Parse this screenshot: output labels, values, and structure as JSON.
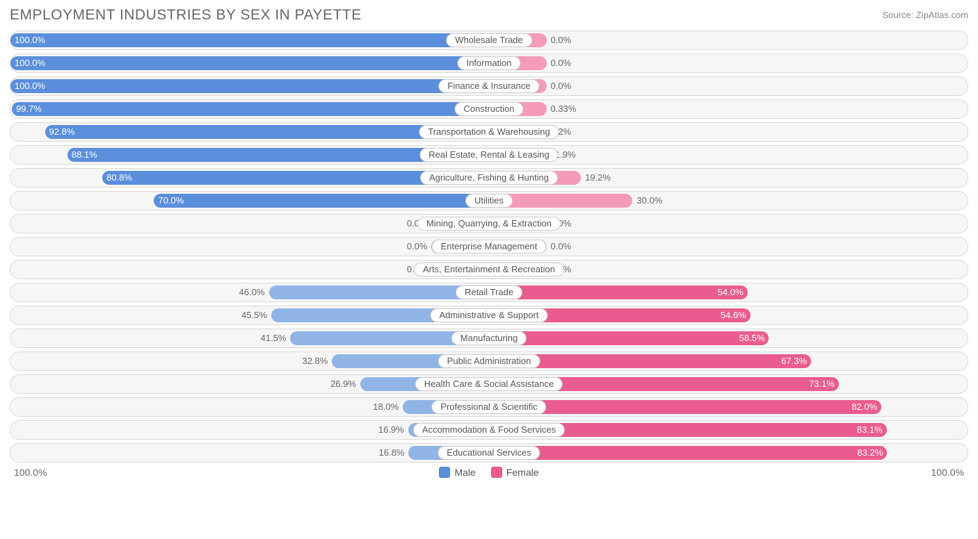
{
  "title": "EMPLOYMENT INDUSTRIES BY SEX IN PAYETTE",
  "source": "Source: ZipAtlas.com",
  "colors": {
    "male_dark": "#5b8edb",
    "male_light": "#90b4e6",
    "female_dark": "#ea5c8f",
    "female_light": "#f59bba",
    "row_bg": "#f6f6f6",
    "row_border": "#d9d9d9",
    "text": "#666666"
  },
  "axis": {
    "left_label": "100.0%",
    "right_label": "100.0%"
  },
  "legend": {
    "male": "Male",
    "female": "Female"
  },
  "chart": {
    "type": "diverging-bar",
    "min_bar_pct": 12,
    "rows": [
      {
        "category": "Wholesale Trade",
        "male_label": "100.0%",
        "male_pct": 100.0,
        "female_label": "0.0%",
        "female_pct": 0.0
      },
      {
        "category": "Information",
        "male_label": "100.0%",
        "male_pct": 100.0,
        "female_label": "0.0%",
        "female_pct": 0.0
      },
      {
        "category": "Finance & Insurance",
        "male_label": "100.0%",
        "male_pct": 100.0,
        "female_label": "0.0%",
        "female_pct": 0.0
      },
      {
        "category": "Construction",
        "male_label": "99.7%",
        "male_pct": 99.7,
        "female_label": "0.33%",
        "female_pct": 0.33
      },
      {
        "category": "Transportation & Warehousing",
        "male_label": "92.8%",
        "male_pct": 92.8,
        "female_label": "7.2%",
        "female_pct": 7.2
      },
      {
        "category": "Real Estate, Rental & Leasing",
        "male_label": "88.1%",
        "male_pct": 88.1,
        "female_label": "11.9%",
        "female_pct": 11.9
      },
      {
        "category": "Agriculture, Fishing & Hunting",
        "male_label": "80.8%",
        "male_pct": 80.8,
        "female_label": "19.2%",
        "female_pct": 19.2
      },
      {
        "category": "Utilities",
        "male_label": "70.0%",
        "male_pct": 70.0,
        "female_label": "30.0%",
        "female_pct": 30.0
      },
      {
        "category": "Mining, Quarrying, & Extraction",
        "male_label": "0.0%",
        "male_pct": 0.0,
        "female_label": "0.0%",
        "female_pct": 0.0
      },
      {
        "category": "Enterprise Management",
        "male_label": "0.0%",
        "male_pct": 0.0,
        "female_label": "0.0%",
        "female_pct": 0.0
      },
      {
        "category": "Arts, Entertainment & Recreation",
        "male_label": "0.0%",
        "male_pct": 0.0,
        "female_label": "0.0%",
        "female_pct": 0.0
      },
      {
        "category": "Retail Trade",
        "male_label": "46.0%",
        "male_pct": 46.0,
        "female_label": "54.0%",
        "female_pct": 54.0
      },
      {
        "category": "Administrative & Support",
        "male_label": "45.5%",
        "male_pct": 45.5,
        "female_label": "54.6%",
        "female_pct": 54.6
      },
      {
        "category": "Manufacturing",
        "male_label": "41.5%",
        "male_pct": 41.5,
        "female_label": "58.5%",
        "female_pct": 58.5
      },
      {
        "category": "Public Administration",
        "male_label": "32.8%",
        "male_pct": 32.8,
        "female_label": "67.3%",
        "female_pct": 67.3
      },
      {
        "category": "Health Care & Social Assistance",
        "male_label": "26.9%",
        "male_pct": 26.9,
        "female_label": "73.1%",
        "female_pct": 73.1
      },
      {
        "category": "Professional & Scientific",
        "male_label": "18.0%",
        "male_pct": 18.0,
        "female_label": "82.0%",
        "female_pct": 82.0
      },
      {
        "category": "Accommodation & Food Services",
        "male_label": "16.9%",
        "male_pct": 16.9,
        "female_label": "83.1%",
        "female_pct": 83.1
      },
      {
        "category": "Educational Services",
        "male_label": "16.8%",
        "male_pct": 16.8,
        "female_label": "83.2%",
        "female_pct": 83.2
      }
    ]
  }
}
